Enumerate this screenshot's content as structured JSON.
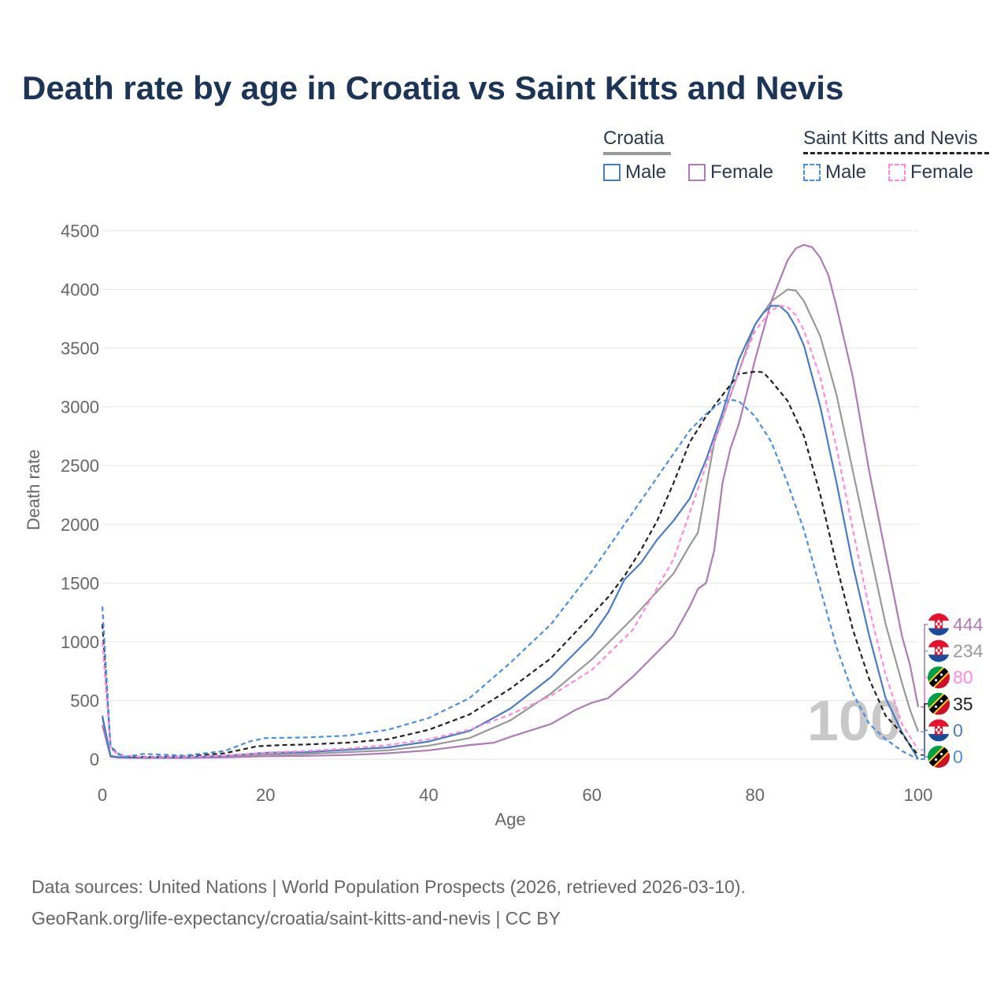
{
  "title": "Death rate by age in Croatia vs Saint Kitts and Nevis",
  "legend": {
    "groups": [
      {
        "name": "Croatia",
        "male_label": "Male",
        "female_label": "Female"
      },
      {
        "name": "Saint Kitts and Nevis",
        "male_label": "Male",
        "female_label": "Female"
      }
    ]
  },
  "watermark_age": "100",
  "end_labels": [
    "444",
    "234",
    "80",
    "35",
    "0",
    "0"
  ],
  "footer": {
    "line1": "Data sources: United Nations | World Population Prospects (2026, retrieved 2026-03-10).",
    "line2": "GeoRank.org/life-expectancy/croatia/saint-kitts-and-nevis | CC BY"
  },
  "colors": {
    "croatia_male": "#4a7cc4",
    "croatia_female": "#b07ab8",
    "croatia_total": "#999999",
    "skn_male": "#4a90e2",
    "skn_female": "#ff88e0",
    "skn_total": "#222222",
    "title": "#1c3557"
  },
  "chart_data": {
    "type": "line",
    "title": "Death rate by age in Croatia vs Saint Kitts and Nevis",
    "xlabel": "Age",
    "ylabel": "Death rate",
    "xlim": [
      0,
      100
    ],
    "ylim": [
      0,
      4500
    ],
    "xticks": [
      0,
      20,
      40,
      60,
      80,
      100
    ],
    "yticks": [
      0,
      500,
      1000,
      1500,
      2000,
      2500,
      3000,
      3500,
      4000,
      4500
    ],
    "grid": true,
    "series": [
      {
        "name": "Croatia Total",
        "country": "Croatia",
        "sex": "Total",
        "dashed": false,
        "color": "#999999",
        "end_value": 234,
        "points": [
          [
            0,
            350
          ],
          [
            1,
            25
          ],
          [
            2,
            15
          ],
          [
            5,
            12
          ],
          [
            10,
            12
          ],
          [
            15,
            22
          ],
          [
            20,
            40
          ],
          [
            25,
            45
          ],
          [
            30,
            60
          ],
          [
            35,
            75
          ],
          [
            40,
            115
          ],
          [
            45,
            180
          ],
          [
            50,
            330
          ],
          [
            55,
            560
          ],
          [
            60,
            850
          ],
          [
            65,
            1200
          ],
          [
            70,
            1580
          ],
          [
            72,
            1820
          ],
          [
            73,
            1930
          ],
          [
            75,
            2700
          ],
          [
            78,
            3300
          ],
          [
            80,
            3700
          ],
          [
            82,
            3900
          ],
          [
            84,
            4000
          ],
          [
            85,
            3990
          ],
          [
            86,
            3900
          ],
          [
            88,
            3600
          ],
          [
            90,
            3100
          ],
          [
            92,
            2450
          ],
          [
            94,
            1800
          ],
          [
            96,
            1150
          ],
          [
            98,
            650
          ],
          [
            99,
            420
          ],
          [
            100,
            234
          ]
        ]
      },
      {
        "name": "Croatia Female",
        "country": "Croatia",
        "sex": "Female",
        "dashed": false,
        "color": "#b07ab8",
        "end_value": 444,
        "points": [
          [
            0,
            290
          ],
          [
            1,
            20
          ],
          [
            2,
            12
          ],
          [
            5,
            10
          ],
          [
            10,
            10
          ],
          [
            15,
            15
          ],
          [
            20,
            25
          ],
          [
            25,
            28
          ],
          [
            30,
            35
          ],
          [
            35,
            50
          ],
          [
            40,
            75
          ],
          [
            45,
            120
          ],
          [
            48,
            140
          ],
          [
            50,
            190
          ],
          [
            55,
            300
          ],
          [
            58,
            420
          ],
          [
            60,
            480
          ],
          [
            62,
            520
          ],
          [
            65,
            700
          ],
          [
            70,
            1050
          ],
          [
            72,
            1300
          ],
          [
            73,
            1450
          ],
          [
            74,
            1500
          ],
          [
            75,
            1780
          ],
          [
            76,
            2350
          ],
          [
            77,
            2650
          ],
          [
            78,
            2850
          ],
          [
            80,
            3400
          ],
          [
            82,
            3900
          ],
          [
            84,
            4250
          ],
          [
            85,
            4350
          ],
          [
            86,
            4380
          ],
          [
            87,
            4360
          ],
          [
            88,
            4270
          ],
          [
            89,
            4120
          ],
          [
            90,
            3850
          ],
          [
            92,
            3250
          ],
          [
            94,
            2450
          ],
          [
            96,
            1750
          ],
          [
            98,
            1050
          ],
          [
            99,
            800
          ],
          [
            100,
            444
          ]
        ]
      },
      {
        "name": "Croatia Male",
        "country": "Croatia",
        "sex": "Male",
        "dashed": false,
        "color": "#4a7cc4",
        "end_value": 0,
        "points": [
          [
            0,
            370
          ],
          [
            1,
            28
          ],
          [
            2,
            18
          ],
          [
            5,
            14
          ],
          [
            10,
            14
          ],
          [
            15,
            28
          ],
          [
            20,
            55
          ],
          [
            25,
            60
          ],
          [
            30,
            80
          ],
          [
            35,
            100
          ],
          [
            40,
            150
          ],
          [
            45,
            240
          ],
          [
            50,
            430
          ],
          [
            55,
            700
          ],
          [
            60,
            1050
          ],
          [
            62,
            1250
          ],
          [
            64,
            1530
          ],
          [
            66,
            1670
          ],
          [
            68,
            1870
          ],
          [
            70,
            2030
          ],
          [
            72,
            2220
          ],
          [
            74,
            2550
          ],
          [
            76,
            2950
          ],
          [
            78,
            3400
          ],
          [
            80,
            3700
          ],
          [
            81,
            3800
          ],
          [
            82,
            3860
          ],
          [
            83,
            3860
          ],
          [
            84,
            3800
          ],
          [
            85,
            3680
          ],
          [
            86,
            3520
          ],
          [
            88,
            3000
          ],
          [
            90,
            2350
          ],
          [
            92,
            1650
          ],
          [
            94,
            1050
          ],
          [
            96,
            520
          ],
          [
            98,
            230
          ],
          [
            100,
            0
          ]
        ]
      },
      {
        "name": "Saint Kitts and Nevis Total",
        "country": "Saint Kitts and Nevis",
        "sex": "Total",
        "dashed": true,
        "color": "#222222",
        "end_value": 35,
        "points": [
          [
            0,
            1150
          ],
          [
            1,
            100
          ],
          [
            2,
            40
          ],
          [
            3,
            20
          ],
          [
            5,
            20
          ],
          [
            10,
            22
          ],
          [
            15,
            50
          ],
          [
            19,
            110
          ],
          [
            22,
            120
          ],
          [
            25,
            125
          ],
          [
            30,
            140
          ],
          [
            35,
            170
          ],
          [
            40,
            250
          ],
          [
            45,
            380
          ],
          [
            50,
            600
          ],
          [
            55,
            860
          ],
          [
            60,
            1230
          ],
          [
            62,
            1380
          ],
          [
            64,
            1560
          ],
          [
            66,
            1780
          ],
          [
            68,
            2030
          ],
          [
            70,
            2350
          ],
          [
            72,
            2700
          ],
          [
            74,
            2920
          ],
          [
            76,
            3100
          ],
          [
            78,
            3280
          ],
          [
            80,
            3300
          ],
          [
            81,
            3295
          ],
          [
            82,
            3220
          ],
          [
            84,
            3050
          ],
          [
            86,
            2750
          ],
          [
            88,
            2250
          ],
          [
            90,
            1650
          ],
          [
            92,
            1100
          ],
          [
            94,
            680
          ],
          [
            96,
            370
          ],
          [
            98,
            220
          ],
          [
            99,
            120
          ],
          [
            100,
            35
          ]
        ]
      },
      {
        "name": "Saint Kitts and Nevis Female",
        "country": "Saint Kitts and Nevis",
        "sex": "Female",
        "dashed": true,
        "color": "#ff88e0",
        "end_value": 80,
        "points": [
          [
            0,
            1000
          ],
          [
            1,
            90
          ],
          [
            2,
            35
          ],
          [
            5,
            18
          ],
          [
            10,
            18
          ],
          [
            15,
            30
          ],
          [
            20,
            55
          ],
          [
            25,
            70
          ],
          [
            30,
            90
          ],
          [
            35,
            120
          ],
          [
            40,
            170
          ],
          [
            45,
            250
          ],
          [
            50,
            380
          ],
          [
            55,
            540
          ],
          [
            60,
            760
          ],
          [
            65,
            1100
          ],
          [
            70,
            1700
          ],
          [
            74,
            2500
          ],
          [
            76,
            2900
          ],
          [
            78,
            3300
          ],
          [
            80,
            3650
          ],
          [
            82,
            3820
          ],
          [
            83,
            3860
          ],
          [
            84,
            3850
          ],
          [
            85,
            3780
          ],
          [
            86,
            3650
          ],
          [
            88,
            3250
          ],
          [
            90,
            2650
          ],
          [
            92,
            1950
          ],
          [
            94,
            1280
          ],
          [
            96,
            720
          ],
          [
            98,
            300
          ],
          [
            100,
            80
          ]
        ]
      },
      {
        "name": "Saint Kitts and Nevis Male",
        "country": "Saint Kitts and Nevis",
        "sex": "Male",
        "dashed": true,
        "color": "#4a90e2",
        "end_value": 0,
        "points": [
          [
            0,
            1300
          ],
          [
            1,
            110
          ],
          [
            2,
            45
          ],
          [
            3,
            20
          ],
          [
            5,
            45
          ],
          [
            10,
            30
          ],
          [
            15,
            70
          ],
          [
            18,
            150
          ],
          [
            20,
            180
          ],
          [
            25,
            185
          ],
          [
            30,
            200
          ],
          [
            35,
            250
          ],
          [
            40,
            350
          ],
          [
            45,
            520
          ],
          [
            50,
            820
          ],
          [
            55,
            1150
          ],
          [
            60,
            1600
          ],
          [
            65,
            2100
          ],
          [
            70,
            2600
          ],
          [
            72,
            2800
          ],
          [
            74,
            2940
          ],
          [
            76,
            3050
          ],
          [
            77,
            3060
          ],
          [
            78,
            3050
          ],
          [
            80,
            2920
          ],
          [
            82,
            2700
          ],
          [
            84,
            2350
          ],
          [
            86,
            1950
          ],
          [
            88,
            1450
          ],
          [
            90,
            950
          ],
          [
            92,
            560
          ],
          [
            94,
            300
          ],
          [
            96,
            170
          ],
          [
            98,
            70
          ],
          [
            100,
            0
          ]
        ]
      }
    ]
  }
}
